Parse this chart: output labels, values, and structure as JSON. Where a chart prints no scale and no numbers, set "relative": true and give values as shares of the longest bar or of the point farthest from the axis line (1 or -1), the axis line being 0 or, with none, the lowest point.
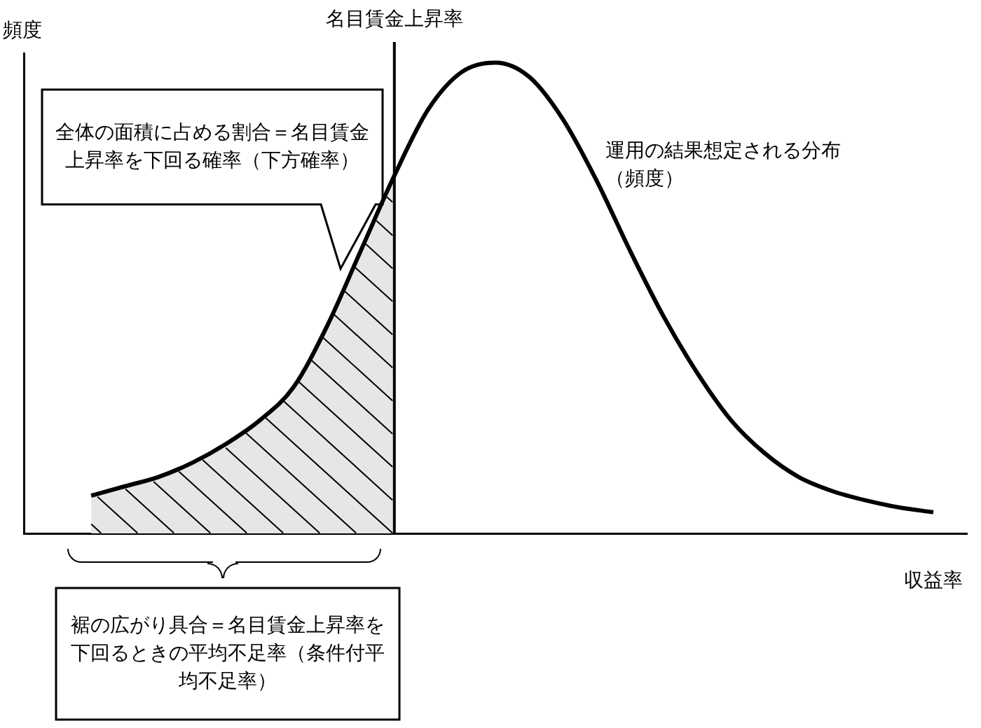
{
  "chart_data": {
    "type": "line",
    "relative": true,
    "xlabel": "収益率",
    "ylabel": "頻度",
    "marker": "none",
    "line_style": "solid",
    "categories": [
      null,
      null,
      null,
      null,
      null,
      null,
      null,
      null,
      null,
      null,
      null,
      null,
      null,
      null,
      null,
      null,
      null,
      null,
      null,
      null,
      null,
      null,
      null,
      null,
      null,
      null,
      null,
      null,
      null
    ],
    "series": [
      {
        "color": "#000000",
        "values": [
          null,
          null,
          0.08,
          0.1,
          0.12,
          0.15,
          0.19,
          0.24,
          0.31,
          0.44,
          0.6,
          0.76,
          0.9,
          0.98,
          1,
          0.97,
          0.88,
          0.75,
          0.6,
          0.46,
          0.34,
          0.24,
          0.17,
          0.12,
          0.09,
          0.07,
          0.055,
          0.045,
          null
        ]
      },
      {
        "type": "area",
        "color": "#e6e6e6",
        "values": [
          null,
          null,
          0.08,
          0.1,
          0.12,
          0.15,
          0.19,
          0.24,
          0.31,
          0.44,
          0.6,
          0.76,
          null,
          null,
          null,
          null,
          null,
          null,
          null,
          null,
          null,
          null,
          null,
          null,
          null,
          null,
          null,
          null,
          null
        ]
      }
    ],
    "annotations": [
      "名目賃金上昇率",
      "全体の面積に占める割合＝名目賃金上昇率を下回る確率（下方確率）",
      "運用の結果想定される分布（頻度）",
      "裾の広がり具合＝名目賃金上昇率を下回るときの平均不足率（条件付平均不足率）"
    ]
  }
}
